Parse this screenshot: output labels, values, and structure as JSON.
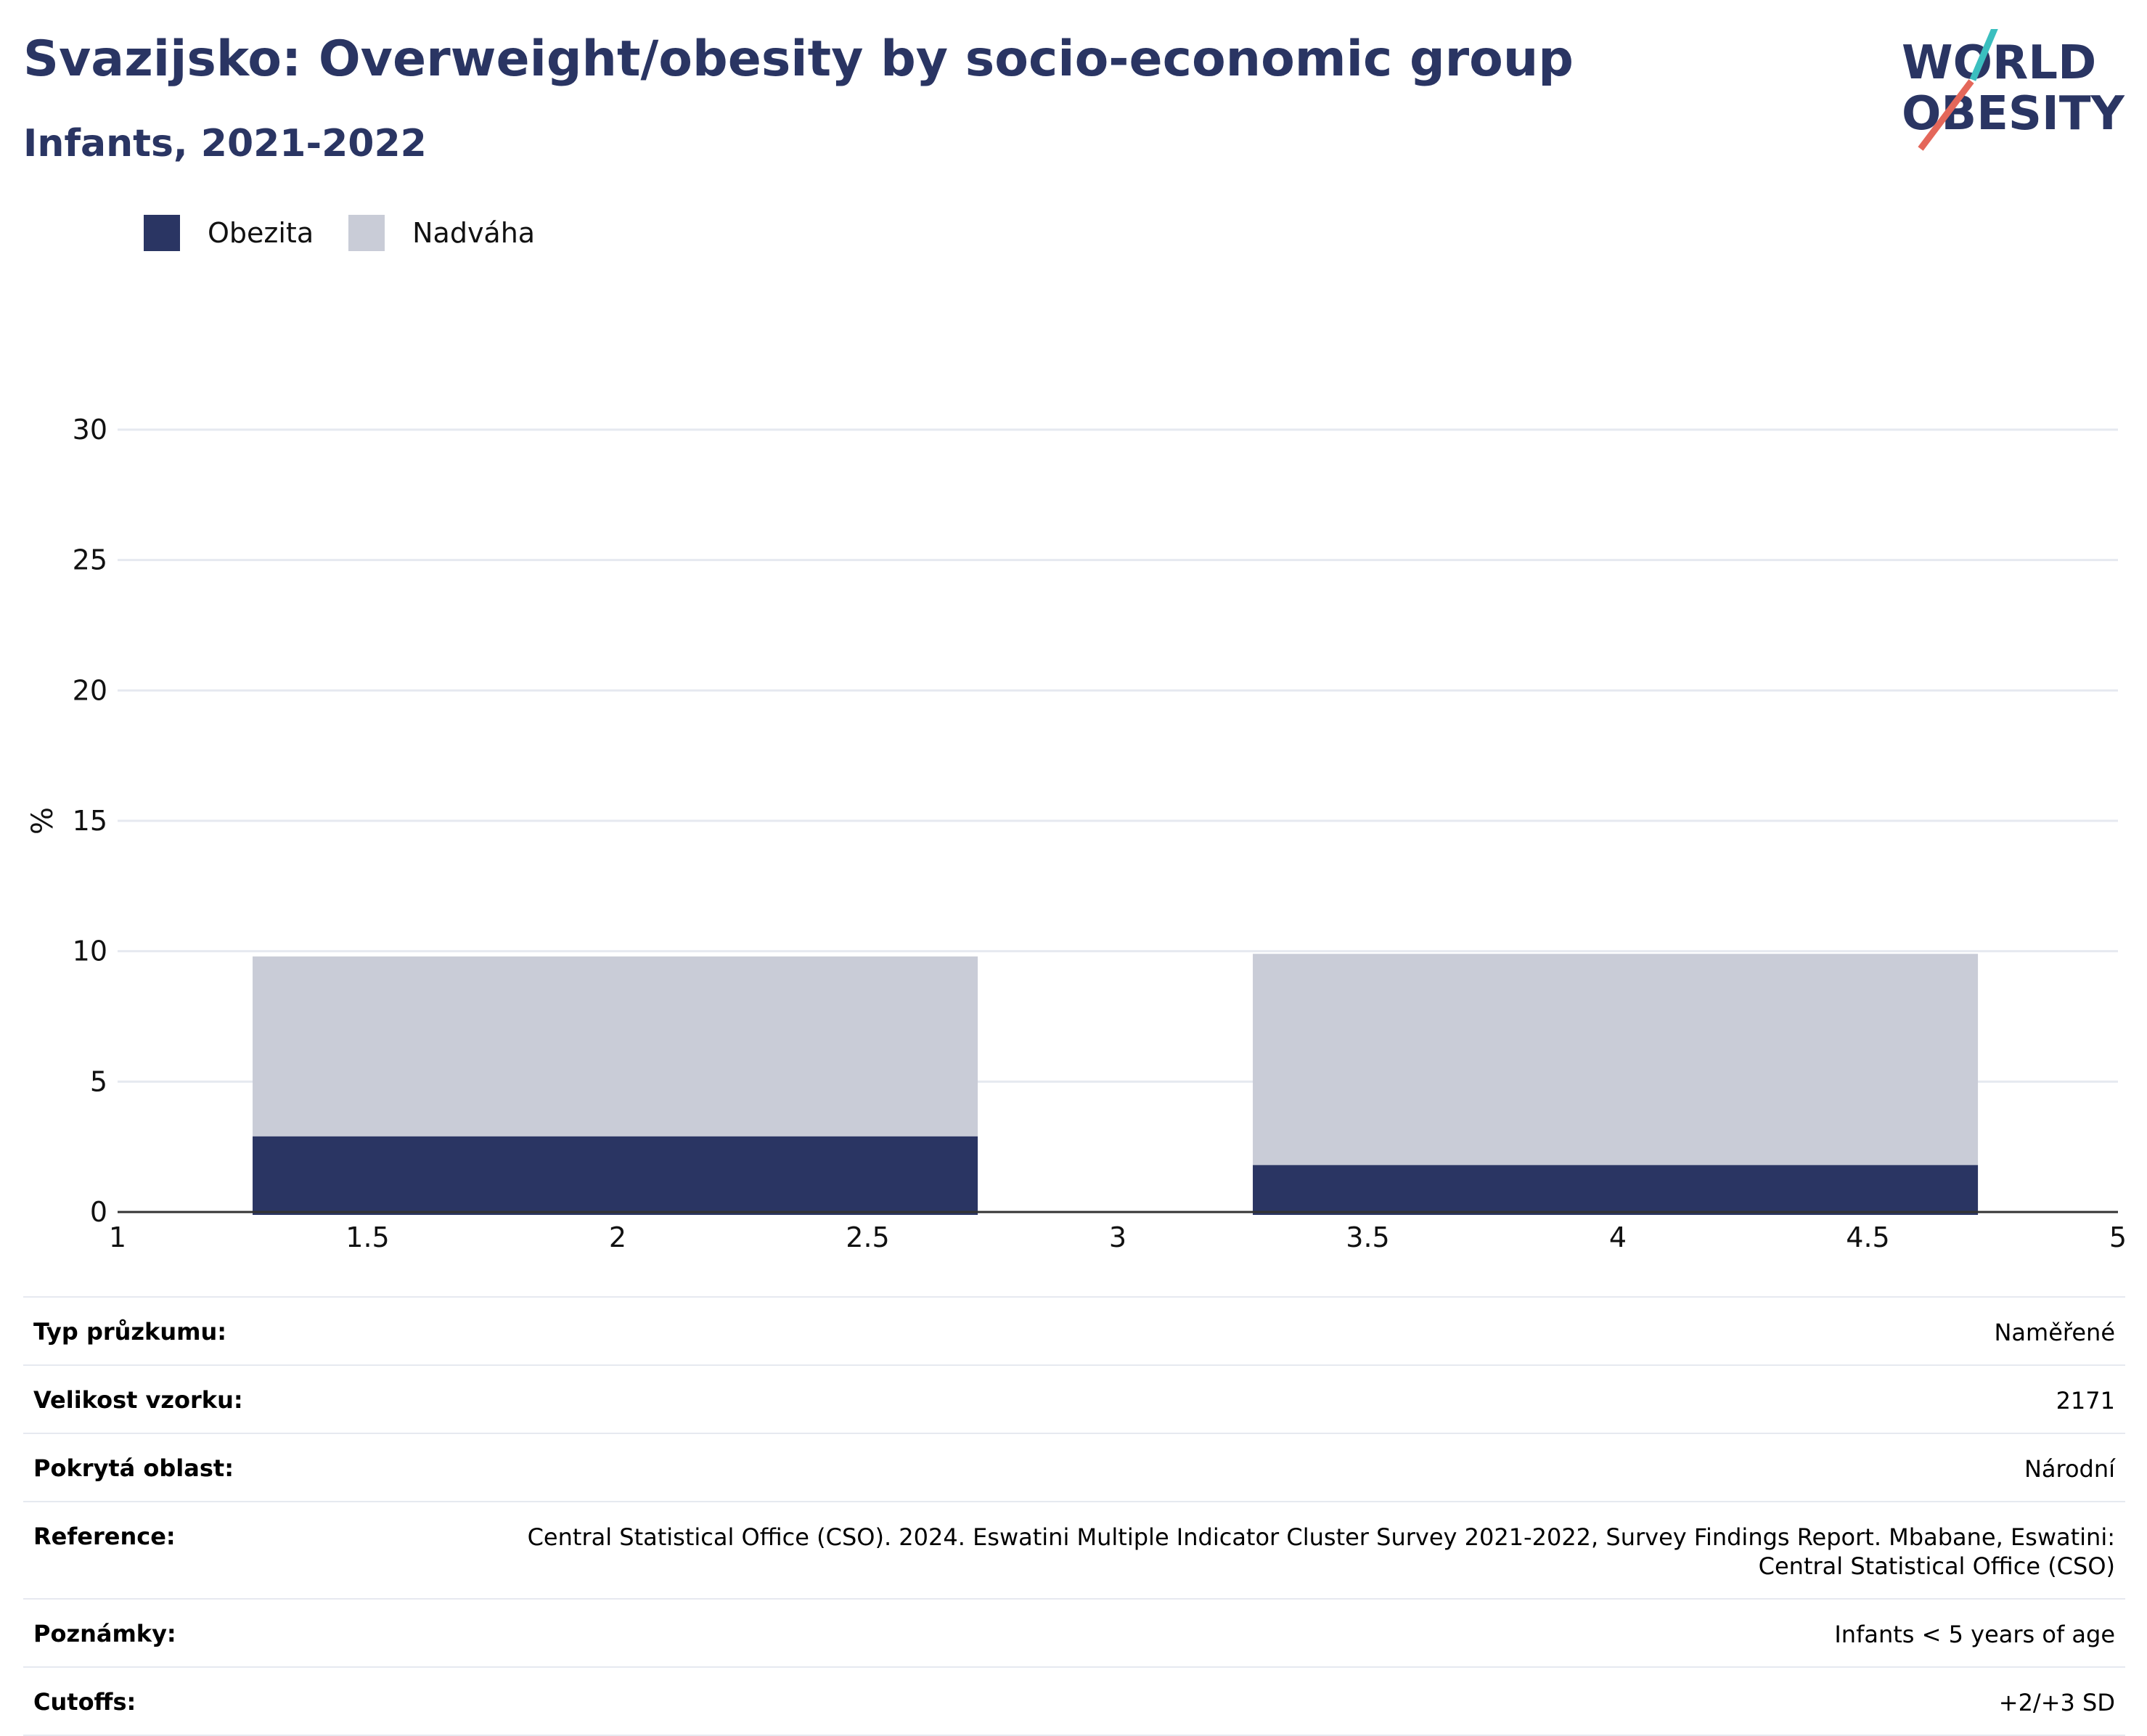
{
  "header": {
    "title": "Svazijsko: Overweight/obesity by socio-economic group",
    "subtitle": "Infants, 2021-2022"
  },
  "logo": {
    "line1": "WORLD",
    "line2": "OBESITY"
  },
  "colors": {
    "obesity": "#2a3563",
    "overweight": "#c9ccd7",
    "title": "#2a3563",
    "logo_teal": "#3bbfbf",
    "logo_red": "#e4675a"
  },
  "legend": [
    {
      "label": "Obezita",
      "color": "#2a3563"
    },
    {
      "label": "Nadváha",
      "color": "#c9ccd7"
    }
  ],
  "chart_data": {
    "type": "bar",
    "stacked": true,
    "ylabel": "%",
    "xlabel": "",
    "xlim": [
      1,
      5
    ],
    "ylim": [
      0,
      30
    ],
    "xticks": [
      1,
      1.5,
      2,
      2.5,
      3,
      3.5,
      4,
      4.5,
      5
    ],
    "xtick_labels": [
      "1",
      "1.5",
      "2",
      "2.5",
      "3",
      "3.5",
      "4",
      "4.5",
      "5"
    ],
    "yticks": [
      0,
      5,
      10,
      15,
      20,
      25,
      30
    ],
    "grid": true,
    "bars": [
      {
        "x_start": 1.27,
        "x_end": 2.72,
        "obezita": 2.9,
        "nadvaha_total": 9.8
      },
      {
        "x_start": 3.27,
        "x_end": 4.72,
        "obezita": 1.8,
        "nadvaha_total": 9.9
      }
    ],
    "series": [
      {
        "name": "Obezita",
        "values": [
          2.9,
          1.8
        ]
      },
      {
        "name": "Nadváha",
        "values": [
          9.8,
          9.9
        ]
      }
    ]
  },
  "info": [
    {
      "label": "Typ průzkumu:",
      "value": "Naměřené"
    },
    {
      "label": "Velikost vzorku:",
      "value": "2171"
    },
    {
      "label": "Pokrytá oblast:",
      "value": "Národní"
    },
    {
      "label": "Reference:",
      "value": "Central Statistical Office (CSO). 2024. Eswatini Multiple Indicator Cluster Survey 2021-2022, Survey Findings Report. Mbabane, Eswatini: Central Statistical Office (CSO)"
    },
    {
      "label": "Poznámky:",
      "value": "Infants < 5 years of age"
    },
    {
      "label": "Cutoffs:",
      "value": "+2/+3 SD"
    }
  ]
}
